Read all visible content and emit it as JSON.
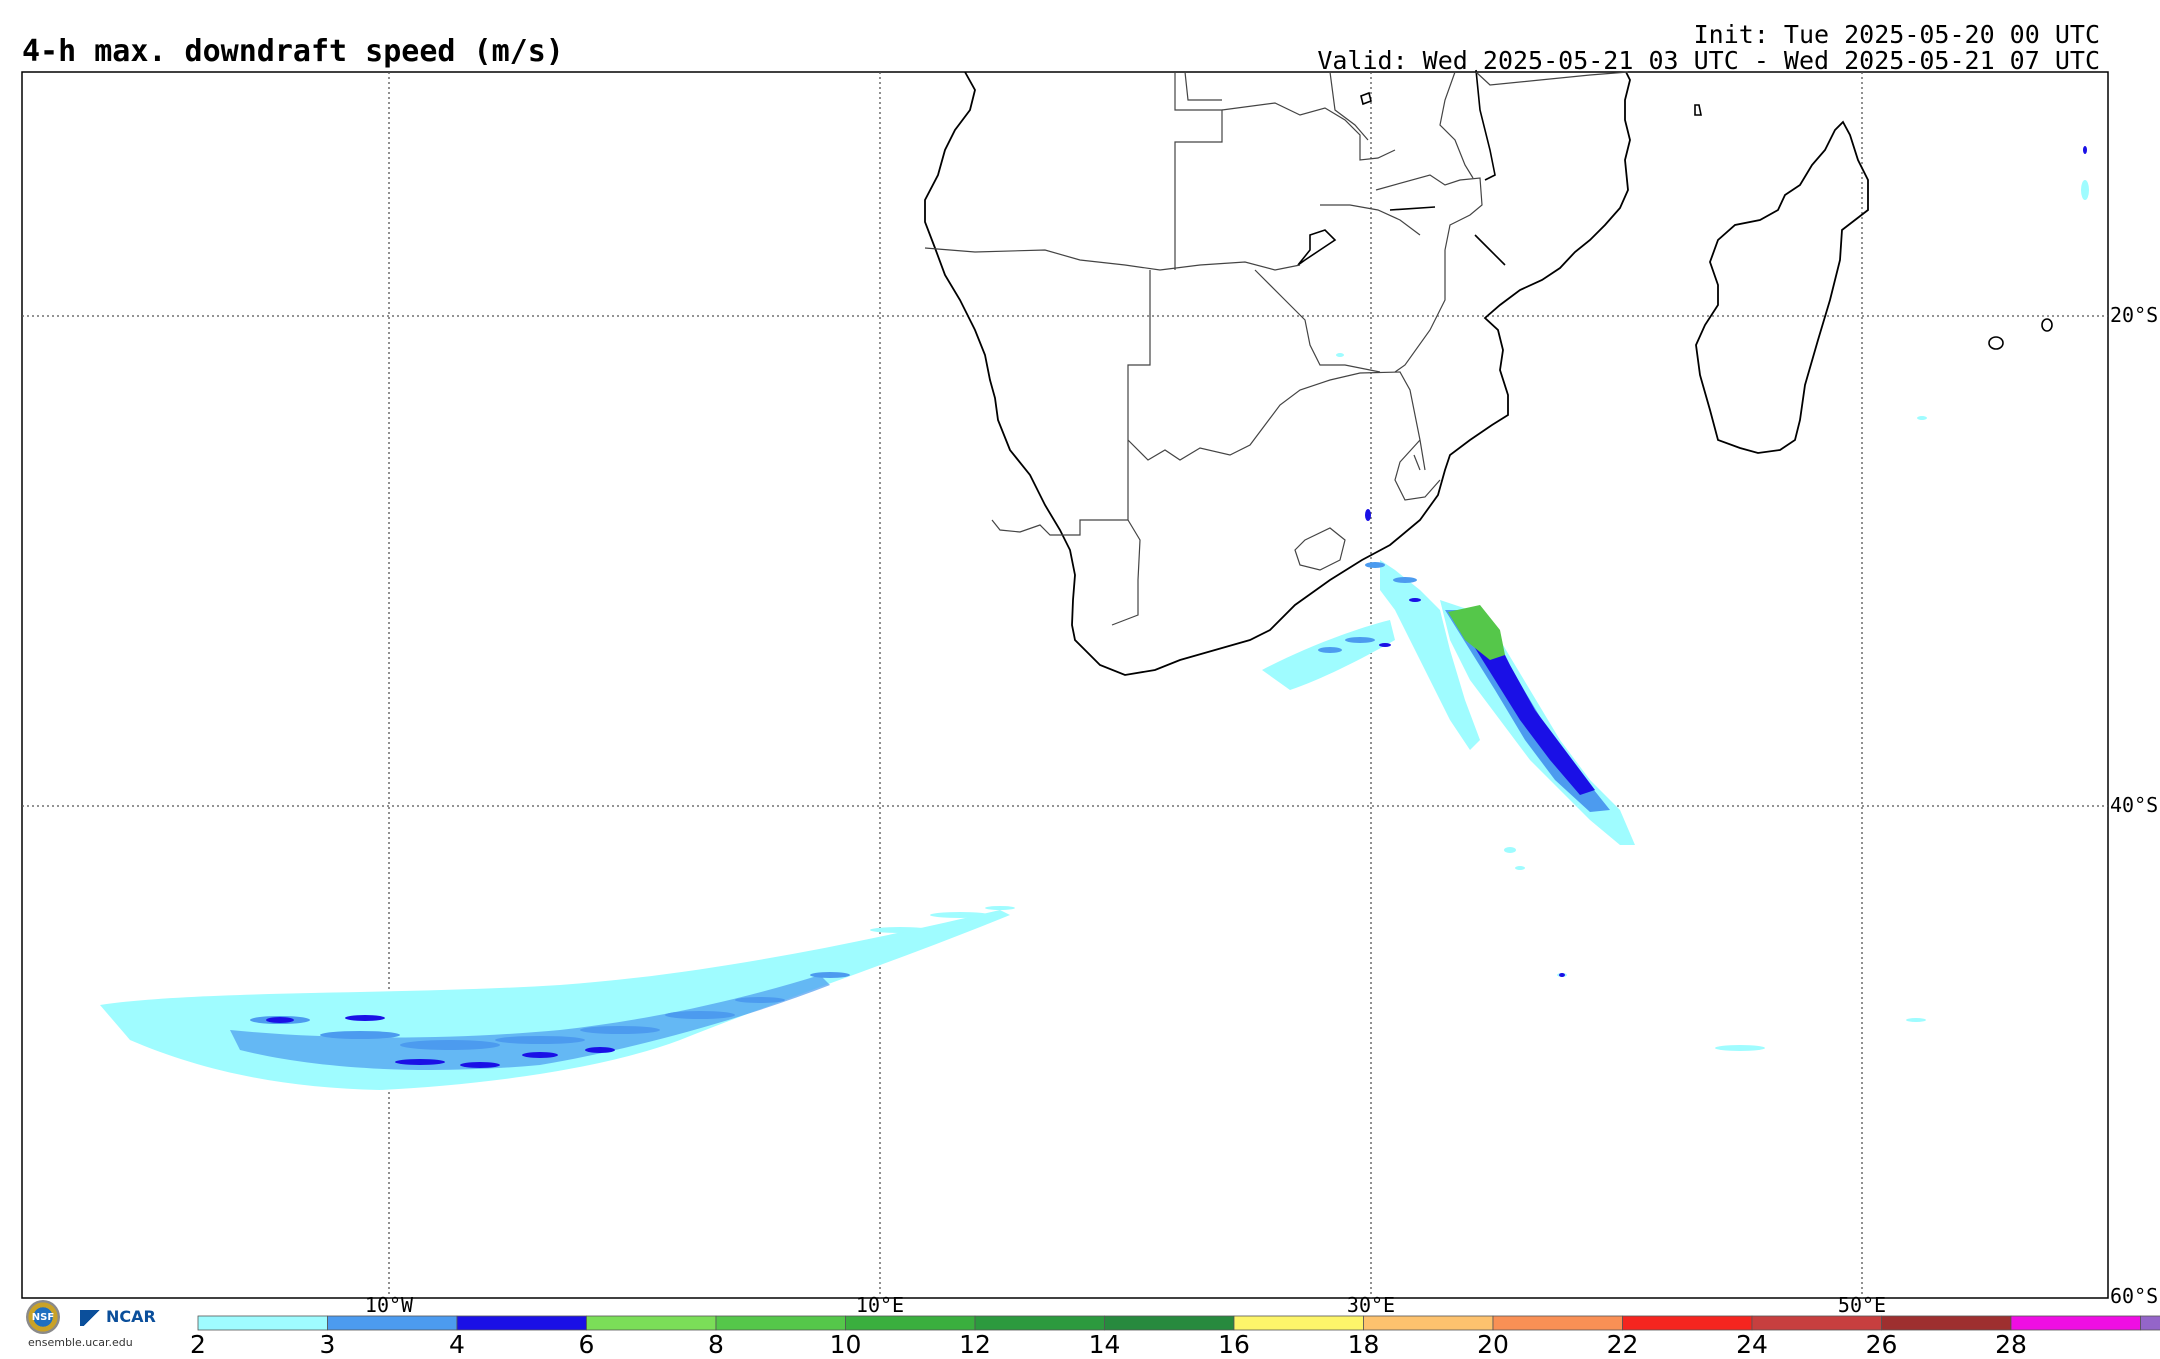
{
  "header": {
    "title": "4-h max. downdraft speed (m/s)",
    "init": "Init: Tue 2025-05-20 00 UTC",
    "valid": "Valid: Wed 2025-05-21 03 UTC - Wed 2025-05-21 07 UTC"
  },
  "map": {
    "lon_labels": [
      "10°W",
      "10°E",
      "30°E",
      "50°E"
    ],
    "lat_labels": [
      "20°S",
      "40°S",
      "60°S"
    ]
  },
  "colorbar": {
    "ticks": [
      "2",
      "3",
      "4",
      "6",
      "8",
      "10",
      "12",
      "14",
      "16",
      "18",
      "20",
      "22",
      "24",
      "26",
      "28"
    ],
    "colors": [
      "#9ffcff",
      "#4c9bef",
      "#1a10e6",
      "#7bde58",
      "#55c74a",
      "#3aaf3e",
      "#2c9a3e",
      "#278a3e",
      "#fdf56a",
      "#fdc26e",
      "#f99055",
      "#f5251f",
      "#c73f3f",
      "#9e2f2f",
      "#ef0ee3",
      "#9465c9"
    ]
  },
  "logo": {
    "nsf_text": "NSF",
    "ncar_text": "NCAR",
    "url": "ensemble.ucar.edu"
  }
}
